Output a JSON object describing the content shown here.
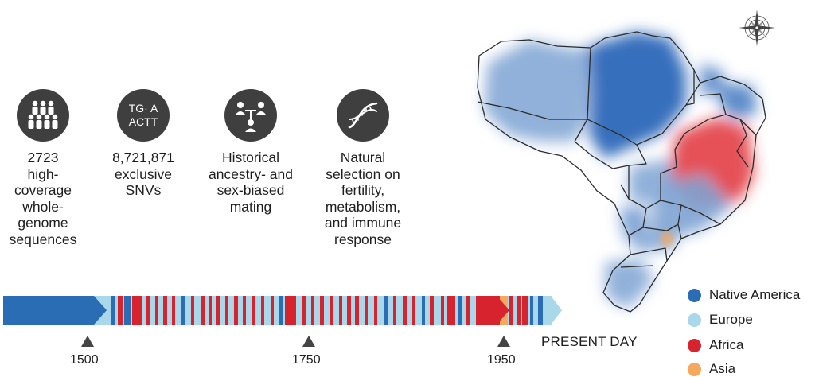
{
  "features": [
    {
      "icon": "people-group-icon",
      "text": "2723\nhigh-\ncoverage\nwhole-\ngenome\nsequences"
    },
    {
      "icon": "snv-icon",
      "icon_text_top": "TG· A",
      "icon_text_bottom": "ACTT",
      "text": "8,721,871\nexclusive\nSNVs"
    },
    {
      "icon": "ancestry-tree-icon",
      "text": "Historical\nancestry- and\nsex-biased\nmating"
    },
    {
      "icon": "dna-icon",
      "text": "Natural\nselection on\nfertility,\nmetabolism,\nand immune\nresponse"
    }
  ],
  "legend": [
    {
      "label": "Native America",
      "color": "#2a6db5"
    },
    {
      "label": "Europe",
      "color": "#a9d8ea"
    },
    {
      "label": "Africa",
      "color": "#d7232d"
    },
    {
      "label": "Asia",
      "color": "#f5a85e"
    }
  ],
  "timeline": {
    "ticks": [
      "1500",
      "1750",
      "1950"
    ],
    "end_label": "PRESENT DAY"
  },
  "compass_icon": "compass-rose-icon"
}
